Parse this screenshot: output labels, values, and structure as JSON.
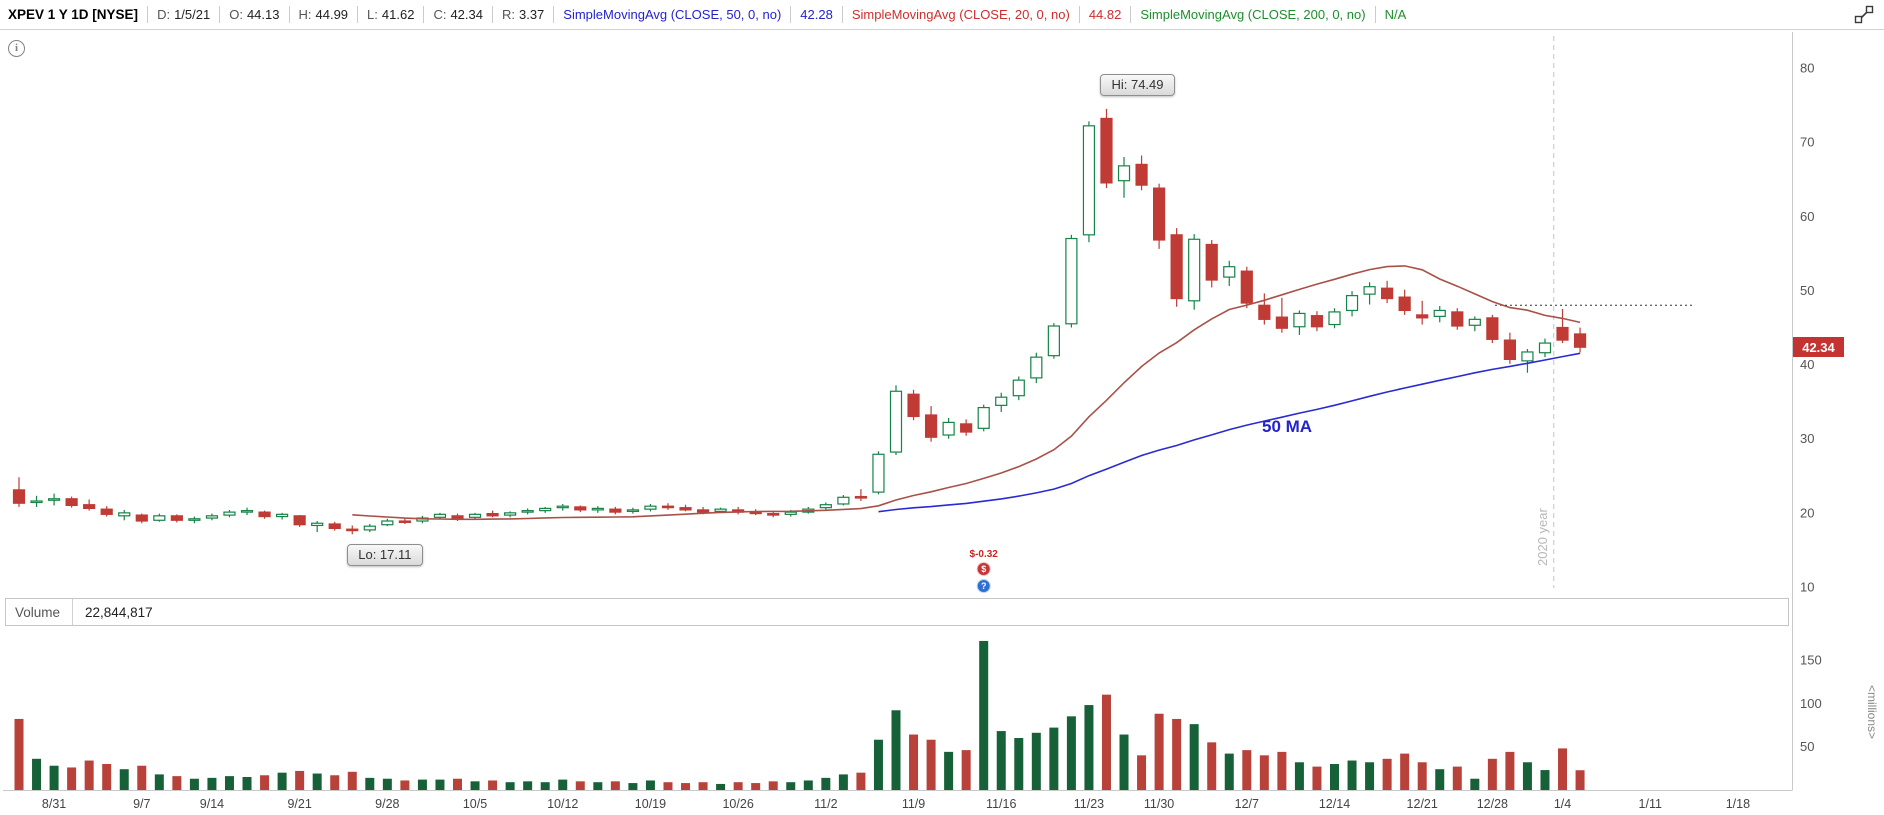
{
  "toolbar": {
    "symbol_title": "XPEV 1 Y 1D [NYSE]",
    "fields": [
      {
        "label": "D:",
        "value": "1/5/21"
      },
      {
        "label": "O:",
        "value": "44.13"
      },
      {
        "label": "H:",
        "value": "44.99"
      },
      {
        "label": "L:",
        "value": "41.62"
      },
      {
        "label": "C:",
        "value": "42.34"
      },
      {
        "label": "R:",
        "value": "3.37"
      }
    ],
    "overlays": [
      {
        "label": "SimpleMovingAvg (CLOSE, 50, 0, no)",
        "value": "42.28",
        "color": "#2323cf"
      },
      {
        "label": "SimpleMovingAvg (CLOSE, 20, 0, no)",
        "value": "44.82",
        "color": "#cf2d2d"
      },
      {
        "label": "SimpleMovingAvg (CLOSE, 200, 0, no)",
        "value": "N/A",
        "color": "#1e8e2e"
      }
    ]
  },
  "icons": {
    "info_glyph": "i"
  },
  "annotations": {
    "hi_label": "Hi: 74.49",
    "lo_label": "Lo: 17.11",
    "last_price": "42.34",
    "ma50_text": "50 MA",
    "year_divider_label": "2020 year",
    "dotted_level": 48.0,
    "event": {
      "label": "$-0.32",
      "date": "11/13"
    }
  },
  "volume_header": {
    "label": "Volume",
    "value": "22,844,817"
  },
  "axes": {
    "price_ticks": [
      80,
      70,
      60,
      50,
      40,
      30,
      20,
      10
    ],
    "volume_ticks": [
      150,
      100,
      50
    ],
    "volume_unit": "<millions>",
    "date_ticks": [
      {
        "label": "8/31",
        "idx": 2
      },
      {
        "label": "9/7",
        "idx": 7
      },
      {
        "label": "9/14",
        "idx": 11
      },
      {
        "label": "9/21",
        "idx": 16
      },
      {
        "label": "9/28",
        "idx": 21
      },
      {
        "label": "10/5",
        "idx": 26
      },
      {
        "label": "10/12",
        "idx": 31
      },
      {
        "label": "10/19",
        "idx": 36
      },
      {
        "label": "10/26",
        "idx": 41
      },
      {
        "label": "11/2",
        "idx": 46
      },
      {
        "label": "11/9",
        "idx": 51
      },
      {
        "label": "11/16",
        "idx": 56
      },
      {
        "label": "11/23",
        "idx": 61
      },
      {
        "label": "11/30",
        "idx": 65
      },
      {
        "label": "12/7",
        "idx": 70
      },
      {
        "label": "12/14",
        "idx": 75
      },
      {
        "label": "12/21",
        "idx": 80
      },
      {
        "label": "12/28",
        "idx": 84
      },
      {
        "label": "1/4",
        "idx": 88
      },
      {
        "label": "1/11",
        "idx": 93
      },
      {
        "label": "1/18",
        "idx": 98
      }
    ]
  },
  "chart_data": {
    "type": "candlestick+volume",
    "symbol": "XPEV",
    "timeframe": "1 Y 1D",
    "exchange": "NYSE",
    "price_range": [
      10,
      80
    ],
    "volume_range_millions": [
      0,
      180
    ],
    "colors": {
      "candle_up": "#168347",
      "candle_down": "#c03b35",
      "volume_up": "#176139",
      "volume_down": "#b8423a",
      "last_price_tag": "#c53232"
    },
    "overlays": [
      {
        "name": "SMA 50",
        "slug": "sma50-line",
        "period": 50,
        "line_color": "#2a2ad2"
      },
      {
        "name": "SMA 20",
        "slug": "sma20-line",
        "period": 20,
        "line_color": "#a85148"
      },
      {
        "name": "SMA 200",
        "slug": "sma200-line",
        "period": 200,
        "line_color": "#1e8e2e"
      }
    ],
    "columns": [
      "date",
      "open",
      "high",
      "low",
      "close",
      "volume_millions"
    ],
    "candles": [
      [
        "8/27",
        23.1,
        24.8,
        20.8,
        21.3,
        82
      ],
      [
        "8/28",
        21.4,
        22.3,
        20.8,
        21.6,
        36
      ],
      [
        "8/31",
        21.7,
        22.6,
        21.0,
        21.9,
        28
      ],
      [
        "9/1",
        21.9,
        22.2,
        20.7,
        21.0,
        26
      ],
      [
        "9/2",
        21.1,
        21.8,
        20.3,
        20.6,
        34
      ],
      [
        "9/3",
        20.5,
        20.9,
        19.5,
        19.8,
        30
      ],
      [
        "9/4",
        19.6,
        20.4,
        19.0,
        20.0,
        24
      ],
      [
        "9/8",
        19.7,
        19.9,
        18.6,
        18.9,
        28
      ],
      [
        "9/9",
        19.0,
        19.9,
        18.8,
        19.6,
        18
      ],
      [
        "9/10",
        19.6,
        19.8,
        18.7,
        19.0,
        16
      ],
      [
        "9/11",
        19.0,
        19.5,
        18.6,
        19.2,
        13
      ],
      [
        "9/14",
        19.3,
        19.9,
        19.0,
        19.6,
        14
      ],
      [
        "9/15",
        19.7,
        20.4,
        19.4,
        20.1,
        16
      ],
      [
        "9/16",
        20.1,
        20.7,
        19.7,
        20.3,
        15
      ],
      [
        "9/17",
        20.1,
        20.3,
        19.2,
        19.5,
        17
      ],
      [
        "9/18",
        19.5,
        20.0,
        19.1,
        19.8,
        20
      ],
      [
        "9/21",
        19.6,
        19.7,
        18.1,
        18.4,
        22
      ],
      [
        "9/22",
        18.3,
        18.9,
        17.4,
        18.6,
        19
      ],
      [
        "9/23",
        18.5,
        18.8,
        17.6,
        17.9,
        17
      ],
      [
        "9/24",
        17.8,
        18.3,
        17.11,
        17.6,
        21
      ],
      [
        "9/25",
        17.7,
        18.5,
        17.4,
        18.2,
        14
      ],
      [
        "9/28",
        18.4,
        19.2,
        18.2,
        18.9,
        13
      ],
      [
        "9/29",
        18.9,
        19.3,
        18.5,
        18.8,
        11
      ],
      [
        "9/30",
        18.9,
        19.6,
        18.6,
        19.3,
        12
      ],
      [
        "10/1",
        19.4,
        20.0,
        19.2,
        19.8,
        12
      ],
      [
        "10/2",
        19.6,
        19.9,
        18.9,
        19.2,
        13
      ],
      [
        "10/5",
        19.4,
        20.0,
        19.2,
        19.8,
        10
      ],
      [
        "10/6",
        19.9,
        20.3,
        19.4,
        19.6,
        11
      ],
      [
        "10/7",
        19.7,
        20.2,
        19.4,
        20.0,
        9
      ],
      [
        "10/8",
        20.1,
        20.6,
        19.8,
        20.3,
        10
      ],
      [
        "10/9",
        20.3,
        20.8,
        20.0,
        20.6,
        9
      ],
      [
        "10/12",
        20.7,
        21.2,
        20.3,
        20.9,
        12
      ],
      [
        "10/13",
        20.8,
        21.0,
        20.1,
        20.4,
        10
      ],
      [
        "10/14",
        20.4,
        20.9,
        20.0,
        20.6,
        9
      ],
      [
        "10/15",
        20.5,
        20.8,
        19.8,
        20.1,
        10
      ],
      [
        "10/16",
        20.2,
        20.7,
        19.9,
        20.4,
        8
      ],
      [
        "10/19",
        20.5,
        21.2,
        20.2,
        20.9,
        11
      ],
      [
        "10/20",
        20.9,
        21.3,
        20.4,
        20.7,
        9
      ],
      [
        "10/21",
        20.7,
        21.1,
        20.2,
        20.4,
        8
      ],
      [
        "10/22",
        20.4,
        20.8,
        19.8,
        20.1,
        9
      ],
      [
        "10/23",
        20.2,
        20.7,
        20.0,
        20.5,
        7
      ],
      [
        "10/26",
        20.4,
        20.8,
        19.8,
        20.1,
        9
      ],
      [
        "10/27",
        20.1,
        20.5,
        19.7,
        19.9,
        8
      ],
      [
        "10/28",
        19.9,
        20.3,
        19.4,
        19.7,
        10
      ],
      [
        "10/29",
        19.8,
        20.4,
        19.5,
        20.1,
        9
      ],
      [
        "10/30",
        20.1,
        20.8,
        19.9,
        20.5,
        11
      ],
      [
        "11/2",
        20.7,
        21.4,
        20.4,
        21.1,
        14
      ],
      [
        "11/3",
        21.2,
        22.4,
        21.0,
        22.1,
        18
      ],
      [
        "11/4",
        22.2,
        23.2,
        21.6,
        22.0,
        20
      ],
      [
        "11/5",
        22.8,
        28.3,
        22.5,
        27.9,
        58
      ],
      [
        "11/6",
        28.2,
        37.2,
        27.8,
        36.4,
        92
      ],
      [
        "11/9",
        36.0,
        36.6,
        32.5,
        33.0,
        64
      ],
      [
        "11/10",
        33.2,
        34.4,
        29.6,
        30.2,
        58
      ],
      [
        "11/11",
        30.5,
        32.8,
        30.0,
        32.2,
        44
      ],
      [
        "11/12",
        32.0,
        32.6,
        30.4,
        30.9,
        46
      ],
      [
        "11/13",
        31.4,
        34.6,
        31.0,
        34.2,
        172
      ],
      [
        "11/16",
        34.5,
        36.2,
        33.6,
        35.6,
        68
      ],
      [
        "11/17",
        35.8,
        38.4,
        35.2,
        37.9,
        60
      ],
      [
        "11/18",
        38.2,
        41.6,
        37.5,
        41.0,
        66
      ],
      [
        "11/19",
        41.2,
        45.6,
        40.8,
        45.2,
        72
      ],
      [
        "11/20",
        45.5,
        57.5,
        45.0,
        57.0,
        85
      ],
      [
        "11/23",
        57.5,
        72.8,
        56.5,
        72.2,
        98
      ],
      [
        "11/24",
        73.2,
        74.49,
        63.8,
        64.5,
        110
      ],
      [
        "11/25",
        64.8,
        68.0,
        62.5,
        66.8,
        64
      ],
      [
        "11/27",
        67.0,
        68.2,
        63.5,
        64.2,
        40
      ],
      [
        "11/30",
        63.8,
        64.4,
        55.6,
        56.8,
        88
      ],
      [
        "12/1",
        57.5,
        58.4,
        47.8,
        48.9,
        82
      ],
      [
        "12/2",
        48.6,
        57.6,
        47.4,
        56.9,
        76
      ],
      [
        "12/3",
        56.2,
        56.8,
        50.4,
        51.4,
        55
      ],
      [
        "12/4",
        51.8,
        54.0,
        50.6,
        53.2,
        42
      ],
      [
        "12/7",
        52.6,
        53.2,
        47.6,
        48.3,
        46
      ],
      [
        "12/8",
        48.0,
        49.6,
        45.4,
        46.1,
        40
      ],
      [
        "12/9",
        46.4,
        49.0,
        44.3,
        44.9,
        44
      ],
      [
        "12/10",
        45.1,
        47.3,
        44.0,
        46.9,
        32
      ],
      [
        "12/11",
        46.6,
        47.2,
        44.5,
        45.1,
        27
      ],
      [
        "12/14",
        45.4,
        47.6,
        44.9,
        47.1,
        30
      ],
      [
        "12/15",
        47.3,
        49.9,
        46.5,
        49.3,
        34
      ],
      [
        "12/16",
        49.5,
        51.1,
        48.1,
        50.5,
        32
      ],
      [
        "12/17",
        50.3,
        51.3,
        48.3,
        48.9,
        36
      ],
      [
        "12/18",
        49.1,
        50.1,
        46.7,
        47.3,
        42
      ],
      [
        "12/21",
        46.7,
        48.6,
        45.4,
        46.3,
        32
      ],
      [
        "12/22",
        46.5,
        47.9,
        45.7,
        47.3,
        24
      ],
      [
        "12/23",
        47.1,
        47.6,
        44.7,
        45.2,
        27
      ],
      [
        "12/24",
        45.3,
        46.5,
        44.5,
        46.1,
        13
      ],
      [
        "12/28",
        46.3,
        46.7,
        42.9,
        43.4,
        36
      ],
      [
        "12/29",
        43.3,
        44.3,
        40.1,
        40.7,
        44
      ],
      [
        "12/30",
        40.5,
        42.1,
        38.9,
        41.7,
        32
      ],
      [
        "12/31",
        41.6,
        43.5,
        41.0,
        42.9,
        23
      ],
      [
        "1/4",
        45.0,
        47.5,
        42.9,
        43.3,
        48
      ],
      [
        "1/5",
        44.13,
        44.99,
        41.62,
        42.34,
        22.8
      ]
    ]
  }
}
